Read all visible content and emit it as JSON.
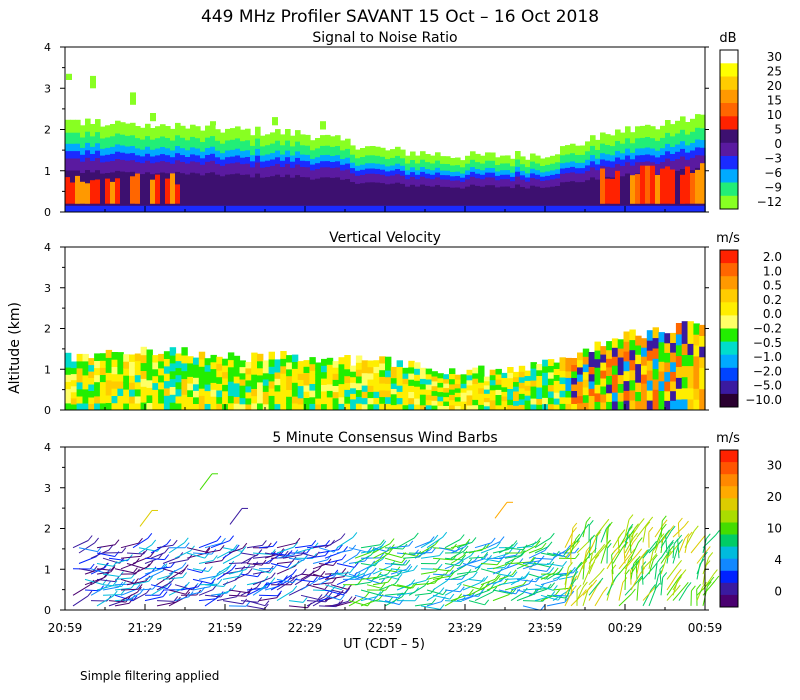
{
  "figure": {
    "title": "449 MHz Profiler SAVANT 15 Oct – 16 Oct 2018",
    "ylabel": "Altitude (km)",
    "xlabel": "UT  (CDT – 5)",
    "x_ticks": [
      "20:59",
      "21:29",
      "21:59",
      "22:29",
      "22:59",
      "23:29",
      "23:59",
      "00:29",
      "00:59"
    ],
    "footnote": "Simple filtering applied"
  },
  "chart_data": [
    {
      "type": "heatmap",
      "title": "Signal to Noise Ratio",
      "unit": "dB",
      "y_ticks": [
        "0",
        "1",
        "2",
        "3",
        "4"
      ],
      "ylim": [
        0,
        4
      ],
      "colorbar": {
        "labels": [
          "30",
          "25",
          "20",
          "15",
          "10",
          "5",
          "0",
          "−3",
          "−6",
          "−9",
          "−12"
        ],
        "colors": [
          "#ffffff",
          "#ffff00",
          "#ffcc00",
          "#ff9900",
          "#ff6600",
          "#ff2200",
          "#3d1070",
          "#5a1aa0",
          "#1a2bff",
          "#00aaff",
          "#22ee77",
          "#88ff22"
        ]
      },
      "approx_top_km": {
        "time": [
          "20:59",
          "21:29",
          "21:59",
          "22:29",
          "22:59",
          "23:29",
          "23:59",
          "00:29",
          "00:59"
        ],
        "signal_top": [
          2.2,
          2.1,
          2.0,
          1.9,
          1.5,
          1.35,
          1.4,
          2.0,
          2.3
        ]
      }
    },
    {
      "type": "heatmap",
      "title": "Vertical Velocity",
      "unit": "m/s",
      "y_ticks": [
        "0",
        "1",
        "2",
        "3",
        "4"
      ],
      "ylim": [
        0,
        4
      ],
      "colorbar": {
        "labels": [
          "2.0",
          "1.0",
          "0.5",
          "0.2",
          "0.0",
          "−0.2",
          "−0.5",
          "−1.0",
          "−2.0",
          "−5.0",
          "−10.0"
        ],
        "colors": [
          "#ff2200",
          "#ff6600",
          "#ff9900",
          "#ffcc00",
          "#ffee00",
          "#ffff66",
          "#22ee00",
          "#00ddcc",
          "#00aaff",
          "#0044ff",
          "#3a1aa0",
          "#2a0030"
        ]
      },
      "approx_top_km": {
        "time": [
          "20:59",
          "21:29",
          "21:59",
          "22:29",
          "22:59",
          "23:29",
          "23:59",
          "00:29",
          "00:59"
        ],
        "signal_top": [
          1.3,
          1.5,
          1.3,
          1.3,
          1.2,
          0.9,
          1.1,
          1.8,
          2.2
        ]
      }
    },
    {
      "type": "other",
      "title": "5 Minute Consensus Wind Barbs",
      "unit": "m/s",
      "y_ticks": [
        "0",
        "1",
        "2",
        "3",
        "4"
      ],
      "ylim": [
        0,
        4
      ],
      "colorbar": {
        "labels": [
          "30",
          "20",
          "10",
          "4",
          "0"
        ],
        "colors": [
          "#ff2200",
          "#ff5500",
          "#ff8800",
          "#ffaa00",
          "#ddcc00",
          "#aadd00",
          "#44dd00",
          "#00cc66",
          "#00bbdd",
          "#1188ff",
          "#0022ff",
          "#3a1aa0",
          "#4a0070"
        ]
      }
    }
  ]
}
